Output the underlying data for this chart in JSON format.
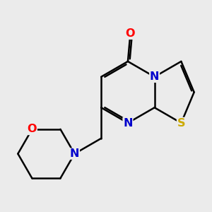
{
  "bg_color": "#ebebeb",
  "bond_color": "#000000",
  "bond_width": 1.8,
  "atom_colors": {
    "O": "#ff0000",
    "N": "#0000cc",
    "S": "#ccaa00",
    "C": "#000000"
  },
  "font_size": 11.5
}
